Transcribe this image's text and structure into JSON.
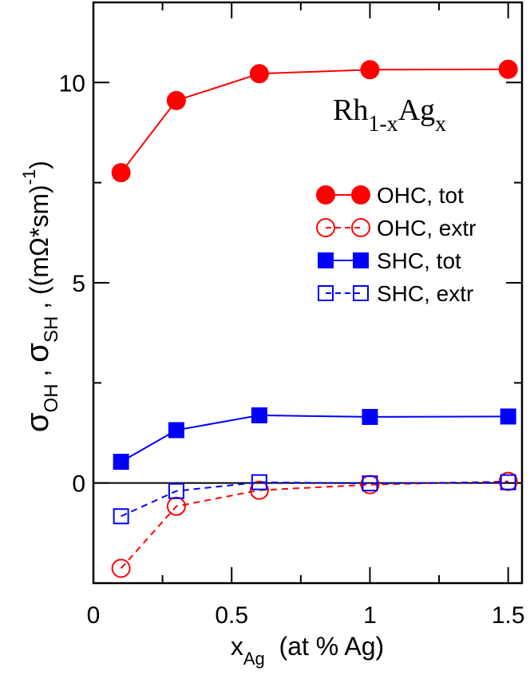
{
  "chart_data": {
    "type": "line",
    "annotation": {
      "main": "Rh",
      "sub1": "1-x",
      "main2": "Ag",
      "sub2": "x"
    },
    "xlabel": {
      "main": "x",
      "sub": "Ag",
      "rest": "  (at % Ag)"
    },
    "ylabel": {
      "sigma1": "σ",
      "sub1": "OH",
      "comma1": " , ",
      "sigma2": "σ",
      "sub2": "SH",
      "rest": " , ((mΩ*sm)",
      "sup": "-1",
      "close": ")"
    },
    "xlim": [
      0,
      1.55
    ],
    "ylim": [
      -2.5,
      12
    ],
    "x_ticks": [
      0,
      0.5,
      1,
      1.5
    ],
    "x_tick_labels": [
      "0",
      "0.5",
      "1",
      "1.5"
    ],
    "x_minor_ticks": [
      0.25,
      0.75,
      1.25
    ],
    "y_ticks": [
      0,
      5,
      10
    ],
    "y_tick_labels": [
      "0",
      "5",
      "10"
    ],
    "y_minor_ticks": [
      -2.5,
      2.5,
      7.5
    ],
    "zero_line": 0,
    "x": [
      0.1,
      0.3,
      0.6,
      1.0,
      1.5
    ],
    "series": [
      {
        "name": "OHC, tot",
        "values": [
          7.75,
          9.55,
          10.22,
          10.32,
          10.33
        ],
        "color": "#ff0000",
        "marker": "circle",
        "filled": true,
        "dashed": false
      },
      {
        "name": "OHC, extr",
        "values": [
          -2.13,
          -0.58,
          -0.18,
          -0.04,
          0.04
        ],
        "color": "#ff0000",
        "marker": "circle",
        "filled": false,
        "dashed": true
      },
      {
        "name": "SHC, tot",
        "values": [
          0.53,
          1.32,
          1.69,
          1.65,
          1.66
        ],
        "color": "#0000ff",
        "marker": "square",
        "filled": true,
        "dashed": false
      },
      {
        "name": "SHC, extr",
        "values": [
          -0.83,
          -0.2,
          0.02,
          -0.01,
          0.02
        ],
        "color": "#0000ff",
        "marker": "square",
        "filled": false,
        "dashed": true
      }
    ]
  }
}
